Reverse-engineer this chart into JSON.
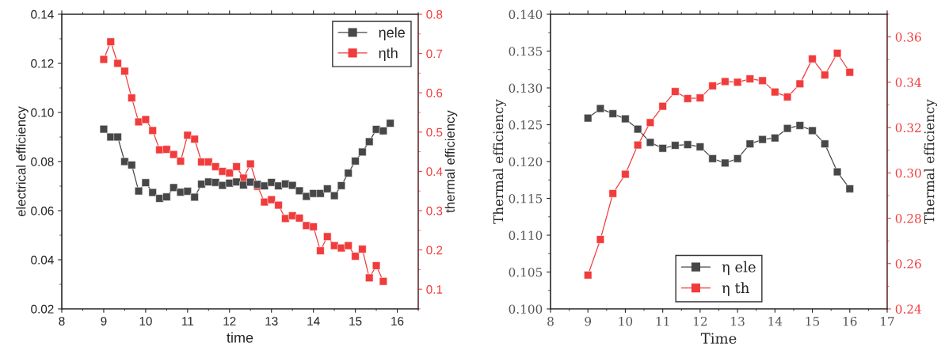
{
  "chart_data": [
    {
      "type": "line",
      "xlabel": "time",
      "ylabel": "electrical efficiency",
      "y2label": "thermal efficiency",
      "xlim": [
        8,
        16.5
      ],
      "xticks": [
        8,
        9,
        10,
        11,
        12,
        13,
        14,
        15,
        16
      ],
      "ylim": [
        0.02,
        0.14
      ],
      "yticks": [
        {
          "value": 0.02,
          "label": "0.02"
        },
        {
          "value": 0.04,
          "label": "0.04"
        },
        {
          "value": 0.06,
          "label": "0.06"
        },
        {
          "value": 0.08,
          "label": "0.08"
        },
        {
          "value": 0.1,
          "label": "0.10"
        },
        {
          "value": 0.12,
          "label": "0.12"
        },
        {
          "value": 0.14,
          "label": "0.14"
        }
      ],
      "y2lim": [
        0.05,
        0.8
      ],
      "y2ticks": [
        0.1,
        0.2,
        0.3,
        0.4,
        0.5,
        0.6,
        0.7,
        0.8
      ],
      "marker": "square",
      "legend": "top right",
      "grid": false,
      "series": [
        {
          "name": "ηele",
          "color": "#474747",
          "x": [
            9,
            9.167,
            9.333,
            9.5,
            9.667,
            9.833,
            10,
            10.167,
            10.333,
            10.5,
            10.667,
            10.833,
            11,
            11.167,
            11.333,
            11.5,
            11.667,
            11.833,
            12,
            12.167,
            12.333,
            12.5,
            12.667,
            12.833,
            13,
            13.167,
            13.333,
            13.5,
            13.667,
            13.833,
            14,
            14.167,
            14.333,
            14.5,
            14.667,
            14.833,
            15,
            15.167,
            15.333,
            15.5,
            15.667,
            15.833
          ],
          "values": [
            0.0932,
            0.09,
            0.09,
            0.08,
            0.0786,
            0.068,
            0.0714,
            0.0674,
            0.065,
            0.0656,
            0.0694,
            0.0675,
            0.0679,
            0.0655,
            0.0708,
            0.0717,
            0.0715,
            0.0703,
            0.0712,
            0.0717,
            0.0704,
            0.0716,
            0.0707,
            0.0701,
            0.0715,
            0.0701,
            0.0709,
            0.0703,
            0.0681,
            0.0658,
            0.067,
            0.067,
            0.0689,
            0.0661,
            0.0702,
            0.0753,
            0.0802,
            0.0839,
            0.0881,
            0.0931,
            0.0925,
            0.0956
          ]
        },
        {
          "name": "ηth",
          "color": "#f03c3c",
          "axis": "y2",
          "x": [
            9,
            9.167,
            9.333,
            9.5,
            9.667,
            9.833,
            10,
            10.167,
            10.333,
            10.5,
            10.667,
            10.833,
            11,
            11.167,
            11.333,
            11.5,
            11.667,
            11.833,
            12,
            12.167,
            12.333,
            12.5,
            12.667,
            12.833,
            13,
            13.167,
            13.333,
            13.5,
            13.667,
            13.833,
            14,
            14.167,
            14.333,
            14.5,
            14.667,
            14.833,
            15,
            15.167,
            15.333,
            15.5,
            15.667
          ],
          "values": [
            0.685,
            0.73,
            0.675,
            0.655,
            0.587,
            0.526,
            0.532,
            0.504,
            0.455,
            0.456,
            0.443,
            0.426,
            0.492,
            0.482,
            0.424,
            0.424,
            0.412,
            0.4,
            0.396,
            0.412,
            0.383,
            0.419,
            0.362,
            0.322,
            0.328,
            0.314,
            0.28,
            0.287,
            0.281,
            0.262,
            0.259,
            0.198,
            0.234,
            0.211,
            0.205,
            0.211,
            0.184,
            0.202,
            0.129,
            0.16,
            0.12
          ]
        }
      ]
    },
    {
      "type": "line",
      "xlabel": "Time",
      "ylabel": "Thermal efficiency",
      "y2label": "Thermal efficiency",
      "xlim": [
        8,
        17
      ],
      "xticks": [
        8,
        9,
        10,
        11,
        12,
        13,
        14,
        15,
        16,
        17
      ],
      "ylim": [
        0.1,
        0.14
      ],
      "yticks": [
        {
          "value": 0.1,
          "label": "0.100"
        },
        {
          "value": 0.105,
          "label": "0.105"
        },
        {
          "value": 0.11,
          "label": "0.110"
        },
        {
          "value": 0.115,
          "label": "0.115"
        },
        {
          "value": 0.12,
          "label": "0.120"
        },
        {
          "value": 0.125,
          "label": "0.125"
        },
        {
          "value": 0.13,
          "label": "0.130"
        },
        {
          "value": 0.135,
          "label": "0.135"
        },
        {
          "value": 0.14,
          "label": "0.140"
        }
      ],
      "y2lim": [
        0.24,
        0.37
      ],
      "y2ticks": [
        0.24,
        0.26,
        0.28,
        {
          "value": 0.3,
          "label": "0.30"
        },
        0.32,
        0.34,
        0.36
      ],
      "marker": "square",
      "legend": "bottom",
      "grid": false,
      "series": [
        {
          "name": "η ele",
          "color": "#474747",
          "x": [
            9,
            9.333,
            9.667,
            10,
            10.333,
            10.667,
            11,
            11.333,
            11.667,
            12,
            12.333,
            12.667,
            13,
            13.333,
            13.667,
            14,
            14.333,
            14.667,
            15,
            15.333,
            15.667,
            16
          ],
          "values": [
            0.1259,
            0.1272,
            0.1265,
            0.1258,
            0.1244,
            0.1226,
            0.1218,
            0.1222,
            0.1223,
            0.122,
            0.1204,
            0.1198,
            0.1204,
            0.1224,
            0.123,
            0.1232,
            0.1245,
            0.1249,
            0.1242,
            0.1224,
            0.1186,
            0.1163
          ]
        },
        {
          "name": "η th",
          "color": "#f03c3c",
          "axis": "y2",
          "x": [
            9,
            9.333,
            9.667,
            10,
            10.333,
            10.667,
            11,
            11.333,
            11.667,
            12,
            12.333,
            12.667,
            13,
            13.333,
            13.667,
            14,
            14.333,
            14.667,
            15,
            15.333,
            15.667,
            16
          ],
          "values": [
            0.2549,
            0.2706,
            0.2909,
            0.2994,
            0.3123,
            0.3222,
            0.3294,
            0.3359,
            0.3328,
            0.3331,
            0.3384,
            0.3403,
            0.34,
            0.3415,
            0.3407,
            0.3357,
            0.3335,
            0.3393,
            0.3503,
            0.3432,
            0.3528,
            0.3444
          ]
        }
      ]
    }
  ]
}
